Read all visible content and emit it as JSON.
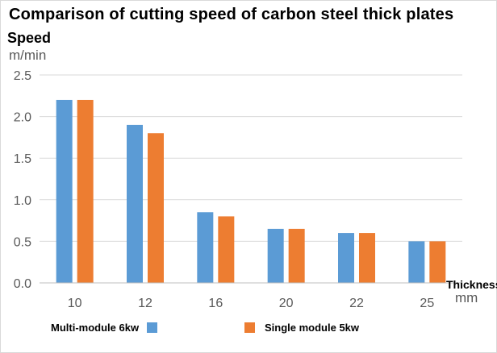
{
  "chart_data": {
    "type": "bar",
    "title": "Comparison of cutting speed of carbon steel thick plates",
    "ylabel": "Speed",
    "yunit": "m/min",
    "xlabel": "Thickness",
    "xunit": "mm",
    "categories": [
      "10",
      "12",
      "16",
      "20",
      "22",
      "25"
    ],
    "series": [
      {
        "name": "Multi-module 6kw",
        "color": "#5b9bd5",
        "values": [
          2.2,
          1.9,
          0.85,
          0.65,
          0.6,
          0.5
        ]
      },
      {
        "name": "Single module 5kw",
        "color": "#ed7d31",
        "values": [
          2.2,
          1.8,
          0.8,
          0.65,
          0.6,
          0.5
        ]
      }
    ],
    "ylim": [
      0,
      2.5
    ],
    "yticks": [
      "0.0",
      "0.5",
      "1.0",
      "1.5",
      "2.0",
      "2.5"
    ],
    "grid": true,
    "legend_position": "bottom"
  }
}
